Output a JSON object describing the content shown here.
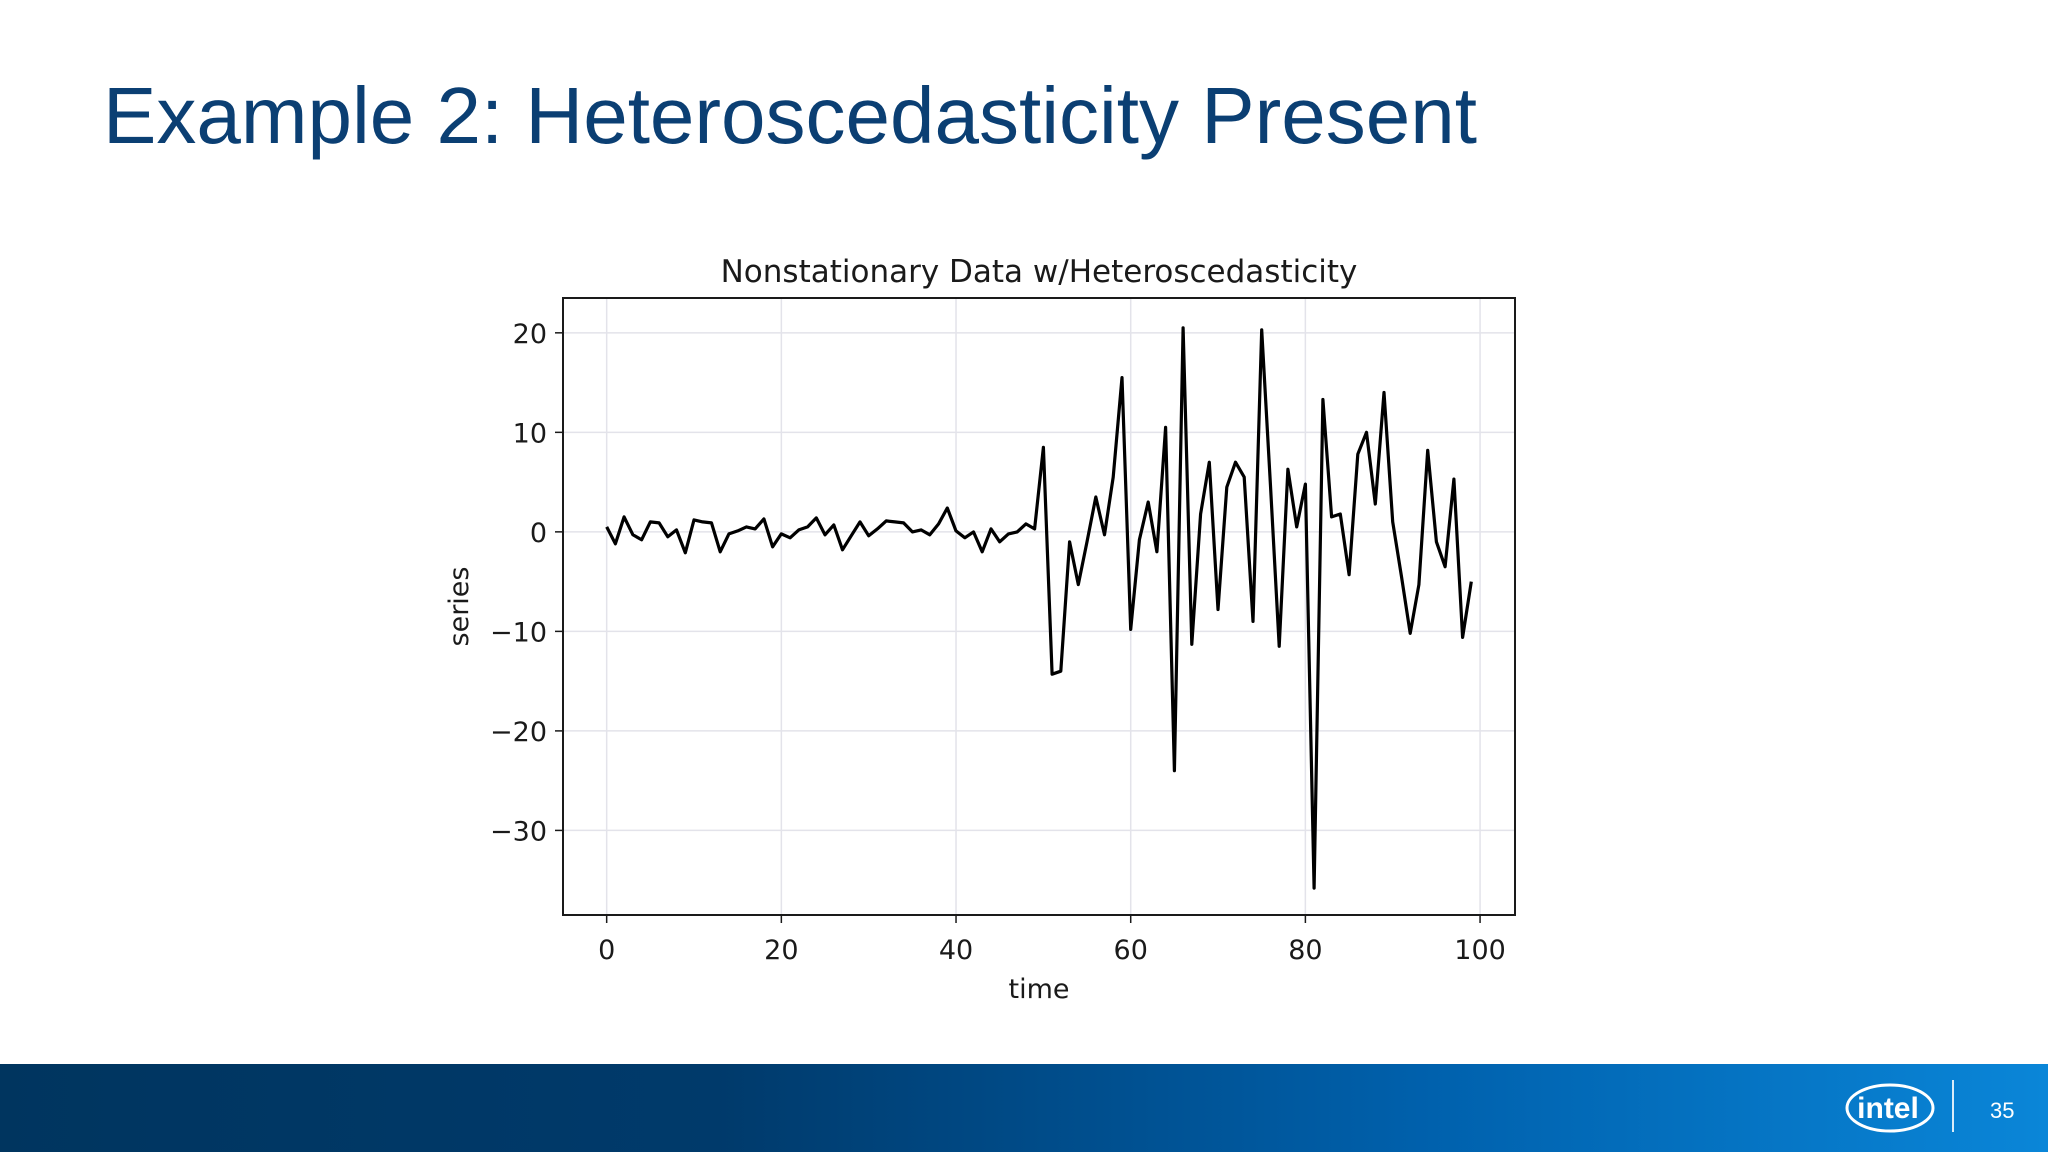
{
  "slide": {
    "title": "Example 2: Heteroscedasticity Present",
    "page_number": "35",
    "logo_text": "intel"
  },
  "colors": {
    "title": "#0b3f73",
    "footer_start": "#00355f",
    "footer_end": "#0a86d8",
    "series_line": "#000000",
    "grid": "#e3e3ea"
  },
  "chart_data": {
    "type": "line",
    "title": "Nonstationary Data w/Heteroscedasticity",
    "xlabel": "time",
    "ylabel": "series",
    "xlim": [
      -5,
      104
    ],
    "ylim": [
      -38.5,
      23.5
    ],
    "xticks": [
      0,
      20,
      40,
      60,
      80,
      100
    ],
    "yticks": [
      20,
      10,
      0,
      -10,
      -20,
      -30
    ],
    "grid": true,
    "series": [
      {
        "x": [
          0,
          1,
          2,
          3,
          4,
          5,
          6,
          7,
          8,
          9,
          10,
          11,
          12,
          13,
          14,
          15,
          16,
          17,
          18,
          19,
          20,
          21,
          22,
          23,
          24,
          25,
          26,
          27,
          28,
          29,
          30,
          31,
          32,
          33,
          34,
          35,
          36,
          37,
          38,
          39,
          40,
          41,
          42,
          43,
          44,
          45,
          46,
          47,
          48,
          49,
          50,
          51,
          52,
          53,
          54,
          55,
          56,
          57,
          58,
          59,
          60,
          61,
          62,
          63,
          64,
          65,
          66,
          67,
          68,
          69,
          70,
          71,
          72,
          73,
          74,
          75,
          76,
          77,
          78,
          79,
          80,
          81,
          82,
          83,
          84,
          85,
          86,
          87,
          88,
          89,
          90,
          91,
          92,
          93,
          94,
          95,
          96,
          97,
          98,
          99
        ],
        "values": [
          0.5,
          -1.2,
          1.5,
          -0.3,
          -0.8,
          1.0,
          0.9,
          -0.5,
          0.2,
          -2.1,
          1.2,
          1.0,
          0.9,
          -2.0,
          -0.2,
          0.1,
          0.5,
          0.3,
          1.3,
          -1.5,
          -0.2,
          -0.6,
          0.2,
          0.5,
          1.4,
          -0.3,
          0.7,
          -1.8,
          -0.4,
          1.0,
          -0.4,
          0.3,
          1.1,
          1.0,
          0.9,
          0.0,
          0.2,
          -0.3,
          0.8,
          2.4,
          0.1,
          -0.6,
          0.0,
          -2.0,
          0.3,
          -1.0,
          -0.2,
          0.0,
          0.8,
          0.3,
          8.5,
          -14.3,
          -14.0,
          -1.0,
          -5.3,
          -1.0,
          3.5,
          -0.3,
          5.5,
          15.5,
          -9.8,
          -0.8,
          3.0,
          -2.0,
          10.5,
          -24.0,
          20.5,
          -11.3,
          1.8,
          7.0,
          -7.8,
          4.5,
          7.0,
          5.5,
          -9.0,
          20.3,
          4.8,
          -11.5,
          6.3,
          0.5,
          4.8,
          -35.8,
          13.3,
          1.5,
          1.8,
          -4.3,
          7.8,
          10.0,
          2.8,
          14.0,
          1.0,
          -4.5,
          -10.2,
          -5.3,
          8.2,
          -1.0,
          -3.5,
          5.3,
          -10.6,
          -5.0
        ]
      }
    ]
  }
}
